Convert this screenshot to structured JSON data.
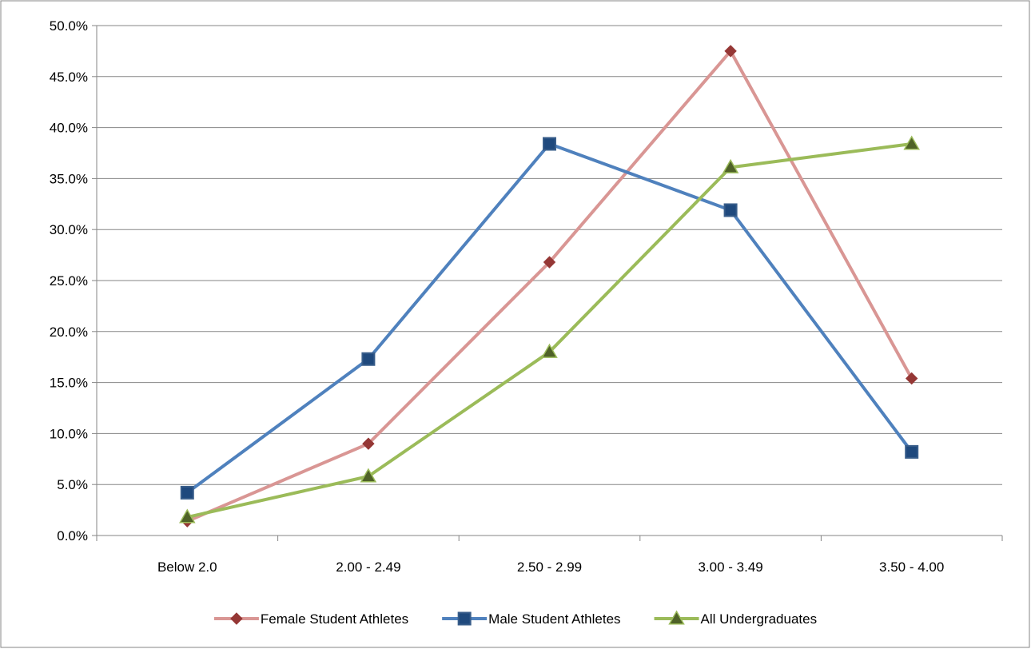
{
  "chart_data": {
    "type": "line",
    "categories": [
      "Below 2.0",
      "2.00 - 2.49",
      "2.50 - 2.99",
      "3.00 - 3.49",
      "3.50 - 4.00"
    ],
    "series": [
      {
        "name": "Female Student Athletes",
        "values": [
          1.4,
          9.0,
          26.8,
          47.5,
          15.4
        ],
        "color": "#d99694",
        "marker": "diamond",
        "marker_color": "#953735"
      },
      {
        "name": "Male Student Athletes",
        "values": [
          4.2,
          17.3,
          38.4,
          31.9,
          8.2
        ],
        "color": "#4f81bd",
        "marker": "square",
        "marker_color": "#1f497d"
      },
      {
        "name": "All Undergraduates",
        "values": [
          1.8,
          5.8,
          18.0,
          36.1,
          38.4
        ],
        "color": "#9bbb59",
        "marker": "triangle",
        "marker_color": "#4f6228"
      }
    ],
    "ylim": [
      0,
      50
    ],
    "ytick_step": 5,
    "ytick_labels": [
      "0.0%",
      "5.0%",
      "10.0%",
      "15.0%",
      "20.0%",
      "25.0%",
      "30.0%",
      "35.0%",
      "40.0%",
      "45.0%",
      "50.0%"
    ],
    "title": "",
    "xlabel": "",
    "ylabel": "",
    "grid": true,
    "legend_position": "bottom"
  }
}
